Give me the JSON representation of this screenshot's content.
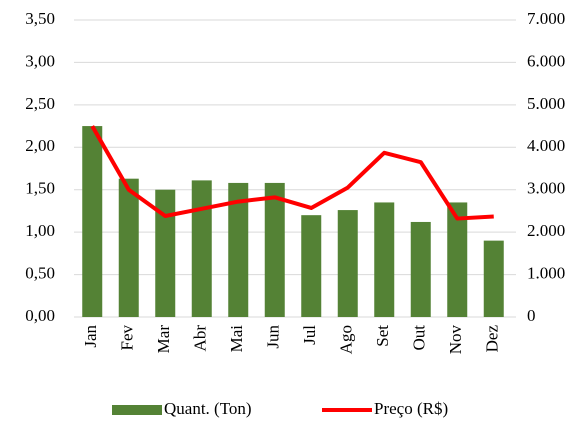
{
  "chart_data": {
    "type": "bar",
    "categories": [
      "Jan",
      "Fev",
      "Mar",
      "Abr",
      "Mai",
      "Jun",
      "Jul",
      "Ago",
      "Set",
      "Out",
      "Nov",
      "Dez"
    ],
    "series": [
      {
        "name": "Quant. (Ton)",
        "color": "#548235",
        "type": "bar",
        "values": [
          2.25,
          1.63,
          1.5,
          1.61,
          1.58,
          1.58,
          1.2,
          1.26,
          1.35,
          1.12,
          1.35,
          0.9
        ]
      },
      {
        "name": "Preço (R$)",
        "color": "#ff0000",
        "type": "line",
        "axis": "y2",
        "values": [
          4500,
          3000,
          2380,
          2550,
          2720,
          2820,
          2570,
          3050,
          3870,
          3650,
          2320,
          2370
        ]
      }
    ],
    "ylim": [
      0,
      3.5
    ],
    "yticks": [
      {
        "value": 0,
        "label": "0,00"
      },
      {
        "value": 0.5,
        "label": "0,50"
      },
      {
        "value": 1,
        "label": "1,00"
      },
      {
        "value": 1.5,
        "label": "1,50"
      },
      {
        "value": 2,
        "label": "2,00"
      },
      {
        "value": 2.5,
        "label": "2,50"
      },
      {
        "value": 3,
        "label": "3,00"
      },
      {
        "value": 3.5,
        "label": "3,50"
      }
    ],
    "y2lim": [
      0,
      7000
    ],
    "y2ticks": [
      0,
      {
        "value": 1000,
        "label": "1.000"
      },
      {
        "value": 2000,
        "label": "2.000"
      },
      {
        "value": 3000,
        "label": "3.000"
      },
      {
        "value": 4000,
        "label": "4.000"
      },
      {
        "value": 5000,
        "label": "5.000"
      },
      {
        "value": 6000,
        "label": "6.000"
      },
      {
        "value": 7000,
        "label": "7.000"
      }
    ],
    "grid": true,
    "legend": "bottom"
  }
}
